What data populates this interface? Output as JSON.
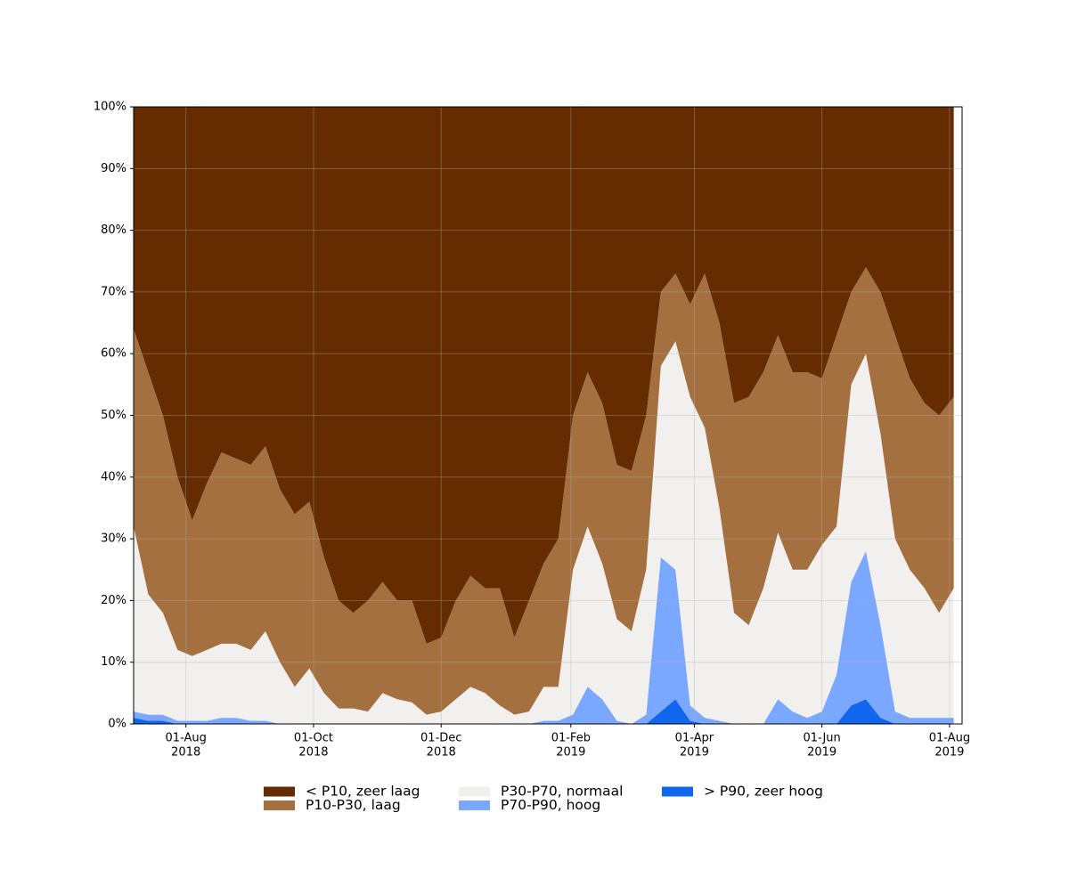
{
  "chart_data": {
    "type": "stacked_area",
    "x": [
      "2018-07-07",
      "2018-07-14",
      "2018-07-21",
      "2018-07-28",
      "2018-08-04",
      "2018-08-11",
      "2018-08-18",
      "2018-08-25",
      "2018-09-01",
      "2018-09-08",
      "2018-09-15",
      "2018-09-22",
      "2018-09-29",
      "2018-10-06",
      "2018-10-13",
      "2018-10-20",
      "2018-10-27",
      "2018-11-03",
      "2018-11-10",
      "2018-11-17",
      "2018-11-24",
      "2018-12-01",
      "2018-12-08",
      "2018-12-15",
      "2018-12-22",
      "2018-12-29",
      "2019-01-05",
      "2019-01-12",
      "2019-01-19",
      "2019-01-26",
      "2019-02-02",
      "2019-02-09",
      "2019-02-16",
      "2019-02-23",
      "2019-03-02",
      "2019-03-09",
      "2019-03-16",
      "2019-03-23",
      "2019-03-30",
      "2019-04-06",
      "2019-04-13",
      "2019-04-20",
      "2019-04-27",
      "2019-05-04",
      "2019-05-11",
      "2019-05-18",
      "2019-05-25",
      "2019-06-01",
      "2019-06-08",
      "2019-06-15",
      "2019-06-22",
      "2019-06-29",
      "2019-07-06",
      "2019-07-13",
      "2019-07-20",
      "2019-07-27",
      "2019-08-03"
    ],
    "series": [
      {
        "name": "< P10, zeer laag",
        "color": "#642c00",
        "values": [
          36,
          43,
          50,
          60,
          67,
          61,
          56,
          57,
          58,
          55,
          62,
          66,
          64,
          73,
          80,
          82,
          80,
          77,
          80,
          80,
          87,
          86,
          80,
          76,
          78,
          78,
          86,
          80,
          74,
          70,
          50,
          43,
          48,
          58,
          59,
          50,
          30,
          27,
          32,
          27,
          35,
          48,
          47,
          43,
          37,
          43,
          43,
          44,
          37,
          30,
          26,
          30,
          37,
          44,
          48,
          50,
          47
        ]
      },
      {
        "name": "P10-P30, laag",
        "color": "#a5703f",
        "values": [
          32,
          36,
          32,
          28,
          22,
          27,
          31,
          30,
          30,
          30,
          28,
          28,
          27,
          22,
          17.5,
          15.5,
          18,
          18,
          16,
          16.5,
          11.5,
          12,
          16,
          18,
          17,
          19,
          12.5,
          18,
          20,
          24,
          25,
          25,
          26,
          25,
          26,
          25,
          12,
          11,
          15,
          25,
          30,
          34,
          37,
          35,
          32,
          32,
          32,
          27,
          31,
          15,
          14,
          23,
          33,
          31,
          30,
          32,
          31
        ]
      },
      {
        "name": "P30-P70, normaal",
        "color": "#f2f0ef",
        "values": [
          30,
          19.5,
          16.5,
          11.5,
          10.5,
          11.5,
          12,
          12,
          11.5,
          14.5,
          10,
          6,
          9,
          5,
          2.5,
          2.5,
          2,
          5,
          4,
          3.5,
          1.5,
          2,
          4,
          6,
          5,
          3,
          1.5,
          2,
          5.5,
          5.5,
          23.5,
          26,
          22,
          16.5,
          15,
          23.5,
          31,
          37,
          50,
          47,
          34.5,
          18,
          16,
          22,
          27,
          23,
          24,
          27,
          24,
          32,
          32,
          31,
          28,
          24,
          21,
          17,
          21
        ]
      },
      {
        "name": "P70-P90, hoog",
        "color": "#7aa7ff",
        "values": [
          1,
          1,
          1,
          0.5,
          0.5,
          0.5,
          1,
          1,
          0.5,
          0.5,
          0,
          0,
          0,
          0,
          0,
          0,
          0,
          0,
          0,
          0,
          0,
          0,
          0,
          0,
          0,
          0,
          0,
          0,
          0.5,
          0.5,
          1.5,
          6,
          4,
          0.5,
          0,
          1.5,
          25,
          21,
          2.5,
          1,
          0.5,
          0,
          0,
          0,
          4,
          2,
          1,
          2,
          8,
          20,
          24,
          15,
          2,
          1,
          1,
          1,
          1
        ]
      },
      {
        "name": "> P90, zeer hoog",
        "color": "#1166ee",
        "values": [
          1,
          0.5,
          0.5,
          0,
          0,
          0,
          0,
          0,
          0,
          0,
          0,
          0,
          0,
          0,
          0,
          0,
          0,
          0,
          0,
          0,
          0,
          0,
          0,
          0,
          0,
          0,
          0,
          0,
          0,
          0,
          0,
          0,
          0,
          0,
          0,
          0,
          2,
          4,
          0.5,
          0,
          0,
          0,
          0,
          0,
          0,
          0,
          0,
          0,
          0,
          3,
          4,
          1,
          0,
          0,
          0,
          0,
          0
        ]
      }
    ],
    "xlim": [
      "2018-07-07",
      "2019-08-07"
    ],
    "xticks": [
      {
        "value": "2018-08-01",
        "label": [
          "01-Aug",
          "2018"
        ]
      },
      {
        "value": "2018-10-01",
        "label": [
          "01-Oct",
          "2018"
        ]
      },
      {
        "value": "2018-12-01",
        "label": [
          "01-Dec",
          "2018"
        ]
      },
      {
        "value": "2019-02-01",
        "label": [
          "01-Feb",
          "2019"
        ]
      },
      {
        "value": "2019-04-01",
        "label": [
          "01-Apr",
          "2019"
        ]
      },
      {
        "value": "2019-06-01",
        "label": [
          "01-Jun",
          "2019"
        ]
      },
      {
        "value": "2019-08-01",
        "label": [
          "01-Aug",
          "2019"
        ]
      }
    ],
    "ylim": [
      0,
      100
    ],
    "yticks": [
      {
        "value": 0,
        "label": "0%"
      },
      {
        "value": 10,
        "label": "10%"
      },
      {
        "value": 20,
        "label": "20%"
      },
      {
        "value": 30,
        "label": "30%"
      },
      {
        "value": 40,
        "label": "40%"
      },
      {
        "value": 50,
        "label": "50%"
      },
      {
        "value": 60,
        "label": "60%"
      },
      {
        "value": 70,
        "label": "70%"
      },
      {
        "value": 80,
        "label": "80%"
      },
      {
        "value": 90,
        "label": "90%"
      },
      {
        "value": 100,
        "label": "100%"
      }
    ],
    "grid": true,
    "legend": "bottom"
  }
}
